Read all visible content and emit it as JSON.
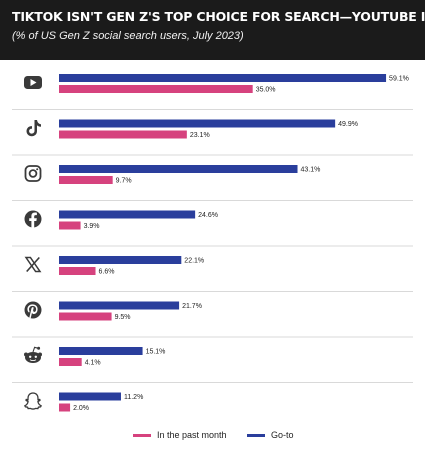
{
  "header": {
    "title": "TIKTOK ISN'T GEN Z'S TOP CHOICE FOR SEARCH—YOUTUBE IS",
    "subtitle": "(% of US Gen Z social search users, July 2023)"
  },
  "colors": {
    "goto": "#2a3e9c",
    "past_month": "#d6427e",
    "background": "#ffffff",
    "header": "#1b1b1b",
    "icon": "#3a3a3a",
    "divider": "#d9d9d9"
  },
  "chart_data": {
    "type": "bar",
    "orientation": "horizontal",
    "categories": [
      "YouTube",
      "TikTok",
      "Instagram",
      "Facebook",
      "X",
      "Pinterest",
      "Reddit",
      "Snapchat"
    ],
    "category_icons": [
      "youtube-icon",
      "tiktok-icon",
      "instagram-icon",
      "facebook-icon",
      "x-icon",
      "pinterest-icon",
      "reddit-icon",
      "snapchat-icon"
    ],
    "series": [
      {
        "name": "Go-to",
        "values": [
          59.1,
          49.9,
          43.1,
          24.6,
          22.1,
          21.7,
          15.1,
          11.2
        ]
      },
      {
        "name": "In the past month",
        "values": [
          35.0,
          23.1,
          9.7,
          3.9,
          6.6,
          9.5,
          4.1,
          2.0
        ]
      }
    ],
    "value_labels": {
      "Go-to": [
        "59.1%",
        "49.9%",
        "43.1%",
        "24.6%",
        "22.1%",
        "21.7%",
        "15.1%",
        "11.2%"
      ],
      "In the past month": [
        "35.0%",
        "23.1%",
        "9.7%",
        "3.9%",
        "6.6%",
        "9.5%",
        "4.1%",
        "2.0%"
      ]
    },
    "legend": {
      "position": "bottom",
      "order": [
        "In the past month",
        "Go-to"
      ]
    },
    "grid": false,
    "xlim": [
      0,
      60
    ]
  }
}
